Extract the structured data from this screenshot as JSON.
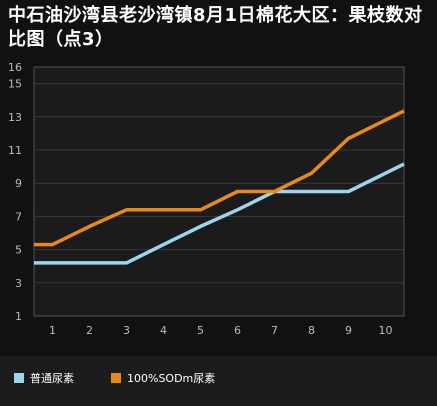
{
  "title": "中石油沙湾县老沙湾镇8月1日棉花大区：果枝数对比图（点3）",
  "colors": {
    "background": "#111111",
    "plot_background": "#1b1b1b",
    "grid": "#3a3a3a",
    "series1": "#9ad7ee",
    "series2": "#e8891a"
  },
  "chart_data": {
    "type": "line",
    "x": [
      1,
      2,
      3,
      4,
      5,
      6,
      7,
      8,
      9,
      10
    ],
    "xticks": [
      "1",
      "2",
      "3",
      "4",
      "5",
      "6",
      "7",
      "8",
      "9",
      "10"
    ],
    "yticks": [
      "1",
      "3",
      "5",
      "7",
      "9",
      "11",
      "13",
      "15",
      "16"
    ],
    "ylim": [
      1,
      16
    ],
    "grid": true,
    "legend_position": "bottom",
    "series": [
      {
        "name": "普通尿素",
        "color": "#9ad7ee",
        "values": [
          4.2,
          4.2,
          4.2,
          5.3,
          6.4,
          7.4,
          8.5,
          8.5,
          8.5,
          9.6
        ]
      },
      {
        "name": "100%SODm尿素",
        "color": "#e8891a",
        "values": [
          5.3,
          6.4,
          7.4,
          7.4,
          7.4,
          8.5,
          8.5,
          9.6,
          11.7,
          12.8
        ]
      }
    ]
  }
}
